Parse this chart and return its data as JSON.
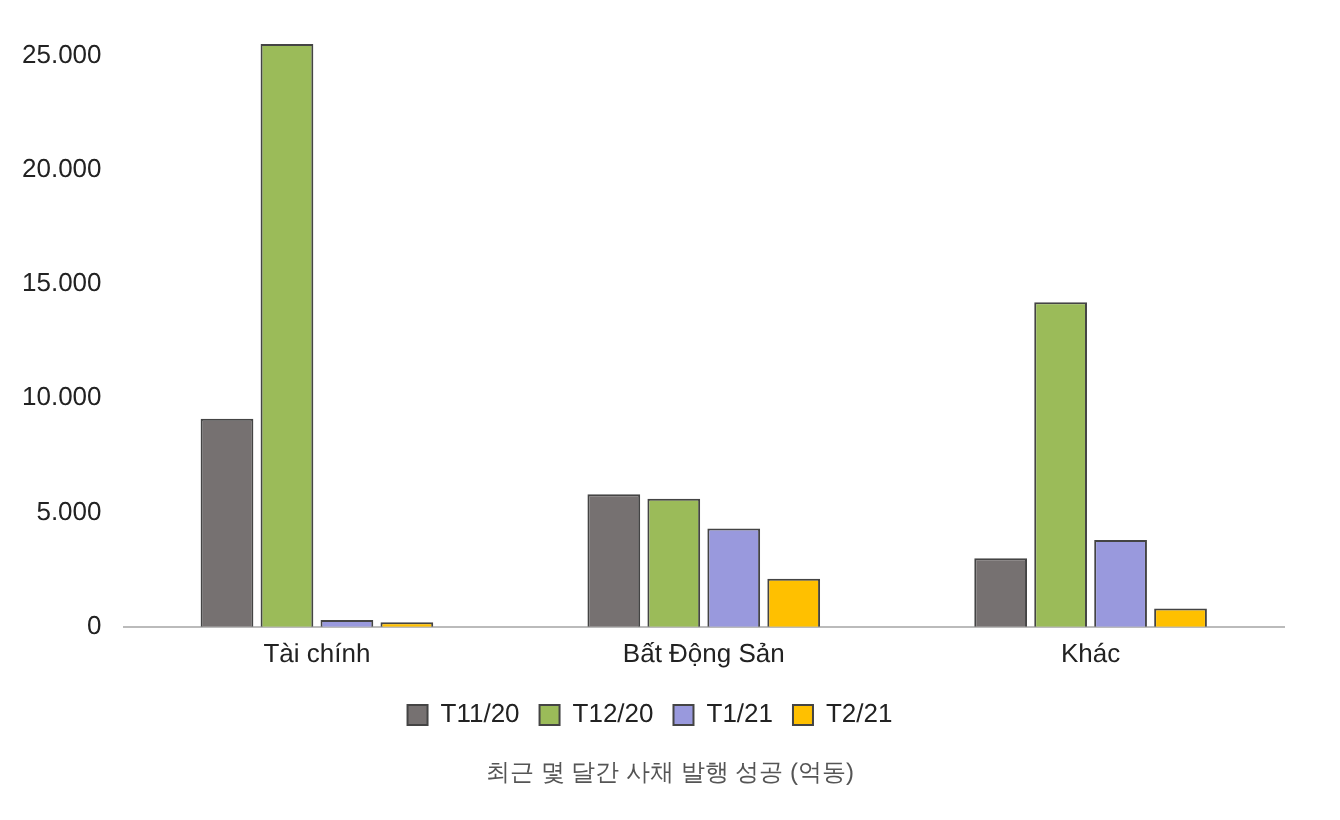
{
  "chart_data": {
    "type": "bar",
    "categories": [
      "Tài chính",
      "Bất Động Sản",
      "Khác"
    ],
    "series": [
      {
        "name": "T11/20",
        "color": "#767171",
        "values": [
          9100,
          5800,
          3000
        ]
      },
      {
        "name": "T12/20",
        "color": "#9bbb59",
        "values": [
          25500,
          5600,
          14200
        ]
      },
      {
        "name": "T1/21",
        "color": "#9999dd",
        "values": [
          300,
          4300,
          3800
        ]
      },
      {
        "name": "T2/21",
        "color": "#ffc000",
        "values": [
          200,
          2100,
          800
        ]
      }
    ],
    "ylim": [
      0,
      25500
    ],
    "yticks": [
      0,
      {
        "value": 5000,
        "label": "5.000"
      },
      {
        "value": 10000,
        "label": "10.000"
      },
      {
        "value": 15000,
        "label": "15.000"
      },
      {
        "value": 20000,
        "label": "20.000"
      },
      {
        "value": 25000,
        "label": "25.000"
      }
    ],
    "grid": false,
    "legend": "bottom",
    "annotations": [
      "최근 몇 달간 사채 발행 성공 (억동)"
    ]
  }
}
